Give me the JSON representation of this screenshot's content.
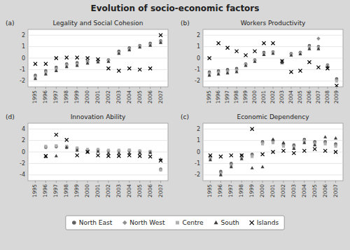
{
  "title": "Evolution of socio-economic factors",
  "chart_data": [
    {
      "type": "scatter",
      "title": "Legality and Social Cohesion",
      "annotations": [
        "(a)"
      ],
      "x": [
        1995,
        1996,
        1997,
        1998,
        1999,
        2000,
        2001,
        2002,
        2003,
        2004,
        2005,
        2006,
        2007
      ],
      "xlim": [
        1994.3,
        2007.7
      ],
      "xticks": [
        1995,
        1996,
        1997,
        1998,
        1999,
        2000,
        2001,
        2002,
        2003,
        2004,
        2005,
        2006,
        2007
      ],
      "ylim": [
        -2.5,
        2.5
      ],
      "yticks": [
        -2,
        -1,
        0,
        1,
        2
      ],
      "grid": true,
      "legend": "bottom",
      "series": [
        {
          "name": "North East",
          "color": "#606060",
          "marker": "circle",
          "values": [
            -1.5,
            -1.1,
            -0.8,
            -0.5,
            -0.4,
            -0.3,
            -0.2,
            -0.15,
            0.6,
            0.9,
            1.1,
            1.3,
            1.5
          ]
        },
        {
          "name": "North West",
          "color": "#909090",
          "marker": "diamond",
          "values": [
            -1.6,
            -1.2,
            -0.9,
            -0.6,
            -0.5,
            -0.35,
            -0.25,
            -0.2,
            0.5,
            0.8,
            1.05,
            1.2,
            1.45
          ]
        },
        {
          "name": "Centre",
          "color": "#b0b0b0",
          "marker": "square",
          "values": [
            -1.7,
            -1.3,
            -1.0,
            -0.65,
            -0.55,
            -0.4,
            -0.3,
            -0.25,
            0.45,
            0.75,
            1.0,
            1.15,
            1.4
          ]
        },
        {
          "name": "South",
          "color": "#404040",
          "marker": "triangle",
          "values": [
            -1.8,
            -1.4,
            -1.1,
            -0.75,
            -0.65,
            -0.45,
            -0.35,
            -0.3,
            0.4,
            0.7,
            0.95,
            1.1,
            1.35
          ]
        },
        {
          "name": "Islands",
          "color": "#000000",
          "marker": "x",
          "values": [
            -0.5,
            -0.5,
            0.0,
            0.05,
            0.05,
            0.0,
            -0.1,
            -0.9,
            -1.1,
            -0.9,
            -1.0,
            -0.9,
            2.0
          ]
        }
      ]
    },
    {
      "type": "scatter",
      "title": "Workers Productivity",
      "annotations": [
        "(b)"
      ],
      "x": [
        1995,
        1996,
        1997,
        1998,
        1999,
        2000,
        2001,
        2002,
        2003,
        2004,
        2005,
        2006,
        2007,
        2008,
        2009
      ],
      "xlim": [
        1994.3,
        2009.7
      ],
      "xticks": [
        1995,
        1996,
        1997,
        1998,
        1999,
        2000,
        2001,
        2002,
        2003,
        2004,
        2005,
        2006,
        2007,
        2008,
        2009
      ],
      "ylim": [
        -2.5,
        2.5
      ],
      "yticks": [
        -2,
        -1,
        0,
        1,
        2
      ],
      "grid": true,
      "series": [
        {
          "name": "North East",
          "color": "#606060",
          "marker": "circle",
          "values": [
            -1.2,
            -1.1,
            -1.0,
            -0.9,
            -0.5,
            -0.15,
            0.5,
            0.55,
            -0.25,
            0.4,
            0.5,
            1.1,
            1.0,
            -0.6,
            -1.8
          ]
        },
        {
          "name": "North West",
          "color": "#909090",
          "marker": "diamond",
          "values": [
            -1.3,
            -1.2,
            -1.1,
            -1.0,
            -0.55,
            -0.2,
            0.4,
            0.5,
            -0.3,
            0.35,
            0.45,
            1.0,
            1.7,
            -0.65,
            -1.9
          ]
        },
        {
          "name": "Centre",
          "color": "#b0b0b0",
          "marker": "square",
          "values": [
            -1.4,
            -1.3,
            -1.2,
            -1.1,
            -0.6,
            -0.25,
            0.35,
            0.45,
            -0.35,
            0.3,
            0.4,
            0.9,
            0.9,
            -0.7,
            -2.0
          ]
        },
        {
          "name": "South",
          "color": "#404040",
          "marker": "triangle",
          "values": [
            -1.5,
            -1.4,
            -1.3,
            -1.2,
            -0.65,
            -0.3,
            0.3,
            0.4,
            -0.4,
            0.25,
            0.35,
            0.8,
            0.8,
            -0.75,
            null
          ]
        },
        {
          "name": "Islands",
          "color": "#000000",
          "marker": "x",
          "values": [
            0.0,
            1.3,
            0.9,
            0.6,
            0.25,
            0.6,
            1.3,
            1.3,
            -0.25,
            -1.2,
            -1.1,
            -0.35,
            -0.8,
            -0.9,
            -2.4
          ]
        }
      ]
    },
    {
      "type": "scatter",
      "title": "Innovation Ability",
      "annotations": [
        "(d)"
      ],
      "x": [
        1995,
        1996,
        1997,
        1998,
        1999,
        2000,
        2001,
        2002,
        2003,
        2004,
        2005,
        2006,
        2007
      ],
      "xlim": [
        1994.3,
        2007.7
      ],
      "xticks": [
        1995,
        1996,
        1997,
        1998,
        1999,
        2000,
        2001,
        2002,
        2003,
        2004,
        2005,
        2006,
        2007
      ],
      "ylim": [
        -5.0,
        5.0
      ],
      "yticks": [
        -4,
        -2,
        0,
        2,
        4
      ],
      "grid": true,
      "series": [
        {
          "name": "North East",
          "color": "#606060",
          "marker": "circle",
          "values": [
            null,
            0.8,
            0.9,
            0.8,
            0.5,
            0.3,
            0.3,
            0.15,
            0.15,
            0.2,
            0.1,
            0.0,
            -3.0
          ]
        },
        {
          "name": "North West",
          "color": "#909090",
          "marker": "diamond",
          "values": [
            null,
            0.9,
            1.0,
            0.9,
            0.6,
            0.4,
            0.4,
            0.25,
            0.25,
            0.3,
            0.15,
            0.05,
            -3.1
          ]
        },
        {
          "name": "Centre",
          "color": "#b0b0b0",
          "marker": "square",
          "values": [
            null,
            1.0,
            1.1,
            1.0,
            0.7,
            0.45,
            0.45,
            0.3,
            0.3,
            0.35,
            0.2,
            0.1,
            -3.15
          ]
        },
        {
          "name": "South",
          "color": "#404040",
          "marker": "triangle",
          "values": [
            null,
            -0.8,
            -0.7,
            0.8,
            0.3,
            0.0,
            0.1,
            -0.2,
            -0.2,
            -0.2,
            -0.15,
            -0.1,
            -1.3
          ]
        },
        {
          "name": "Islands",
          "color": "#000000",
          "marker": "x",
          "values": [
            null,
            -0.7,
            3.0,
            2.1,
            -0.6,
            0.0,
            -0.6,
            -0.7,
            -0.7,
            -0.6,
            -0.7,
            -0.8,
            -1.5
          ]
        }
      ]
    },
    {
      "type": "scatter",
      "title": "Economic Dependency",
      "annotations": [
        "(c)"
      ],
      "x": [
        1995,
        1996,
        1997,
        1998,
        1999,
        2000,
        2001,
        2002,
        2003,
        2004,
        2005,
        2006,
        2007
      ],
      "xlim": [
        1994.3,
        2007.7
      ],
      "xticks": [
        1995,
        1996,
        1997,
        1998,
        1999,
        2000,
        2001,
        2002,
        2003,
        2004,
        2005,
        2006,
        2007
      ],
      "ylim": [
        -2.5,
        2.5
      ],
      "yticks": [
        -2,
        -1,
        0,
        1,
        2
      ],
      "grid": true,
      "series": [
        {
          "name": "North East",
          "color": "#606060",
          "marker": "circle",
          "values": [
            -0.4,
            -1.7,
            -1.0,
            -0.3,
            -0.2,
            0.9,
            1.0,
            0.7,
            0.6,
            1.1,
            0.9,
            0.9,
            0.7
          ]
        },
        {
          "name": "North West",
          "color": "#909090",
          "marker": "diamond",
          "values": [
            -0.5,
            -1.8,
            -1.1,
            -0.4,
            -0.3,
            0.8,
            0.9,
            0.6,
            0.5,
            1.0,
            0.8,
            0.8,
            0.6
          ]
        },
        {
          "name": "Centre",
          "color": "#b0b0b0",
          "marker": "square",
          "values": [
            -0.6,
            -1.9,
            -1.2,
            -0.5,
            -0.4,
            0.7,
            0.8,
            0.5,
            0.4,
            0.9,
            0.7,
            0.7,
            0.5
          ]
        },
        {
          "name": "South",
          "color": "#404040",
          "marker": "triangle",
          "values": [
            -0.7,
            -2.0,
            -1.3,
            -0.6,
            -1.4,
            -1.3,
            1.1,
            0.8,
            0.3,
            0.8,
            0.6,
            1.3,
            1.2
          ]
        },
        {
          "name": "Islands",
          "color": "#000000",
          "marker": "x",
          "values": [
            -0.3,
            -0.4,
            -0.3,
            -0.3,
            2.0,
            -0.2,
            0.0,
            0.1,
            -0.1,
            0.1,
            0.25,
            0.1,
            0.0
          ]
        }
      ]
    }
  ]
}
